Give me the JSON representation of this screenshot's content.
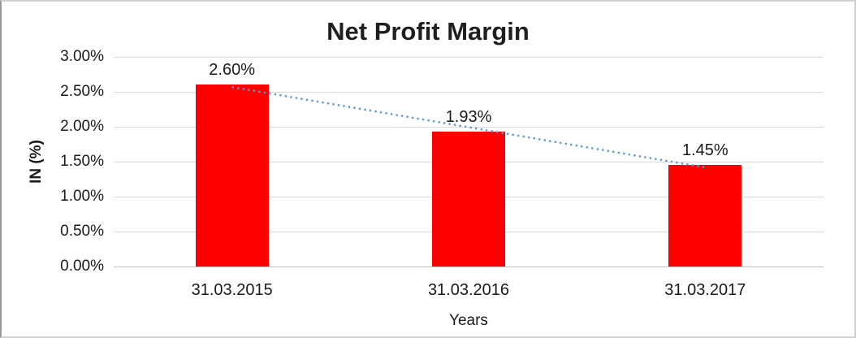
{
  "chart_data": {
    "type": "bar",
    "title": "Net Profit Margin",
    "xlabel": "Years",
    "ylabel": "IN (%)",
    "categories": [
      "31.03.2015",
      "31.03.2016",
      "31.03.2017"
    ],
    "values": [
      2.6,
      1.93,
      1.45
    ],
    "data_labels": [
      "2.60%",
      "1.93%",
      "1.45%"
    ],
    "ylim": [
      0,
      3
    ],
    "ytick_step": 0.5,
    "ytick_labels": [
      "0.00%",
      "0.50%",
      "1.00%",
      "1.50%",
      "2.00%",
      "2.50%",
      "3.00%"
    ],
    "grid": true,
    "legend": "none",
    "bar_color": "#FF0000",
    "gridline_color": "#D9D9D9",
    "axisline_color": "#BFBFBF",
    "trendline": {
      "type": "linear",
      "style": "dotted",
      "color": "#5B9BD5"
    }
  }
}
